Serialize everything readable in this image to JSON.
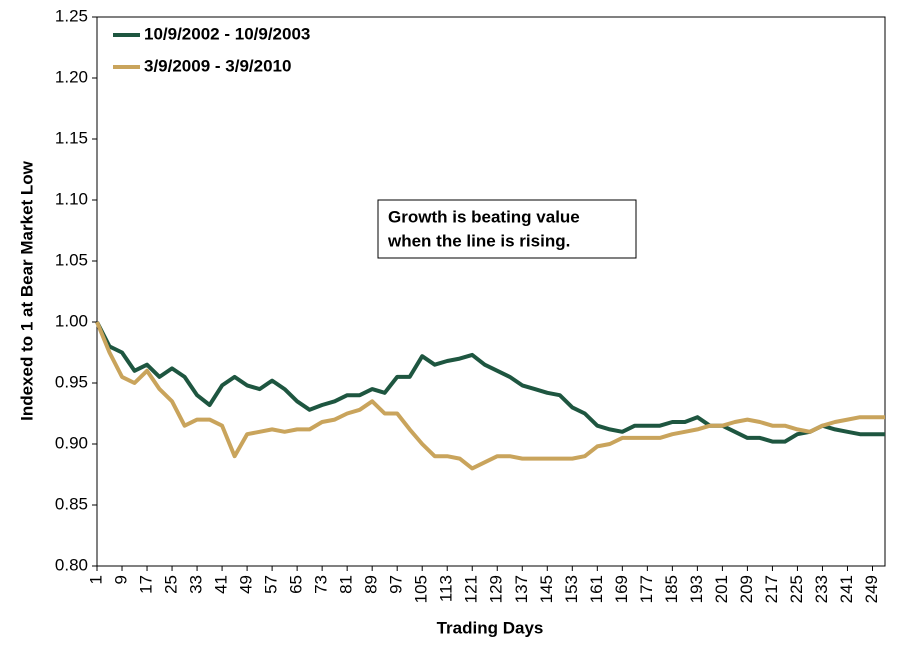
{
  "chart_data": {
    "type": "line",
    "ylabel": "Indexed to 1 at Bear Market Low",
    "xlabel": "Trading Days",
    "annotation": [
      "Growth is beating value",
      "when the line is rising."
    ],
    "legend": "upper left",
    "x": [
      1,
      5,
      9,
      13,
      17,
      21,
      25,
      29,
      33,
      37,
      41,
      45,
      49,
      53,
      57,
      61,
      65,
      69,
      73,
      77,
      81,
      85,
      89,
      93,
      97,
      101,
      105,
      109,
      113,
      117,
      121,
      125,
      129,
      133,
      137,
      141,
      145,
      149,
      153,
      157,
      161,
      165,
      169,
      173,
      177,
      181,
      185,
      189,
      193,
      197,
      201,
      205,
      209,
      213,
      217,
      221,
      225,
      229,
      233,
      237,
      241,
      245,
      249,
      253
    ],
    "series": [
      {
        "name": "10/9/2002 - 10/9/2003",
        "color": "#1e5640",
        "values": [
          1.0,
          0.98,
          0.975,
          0.96,
          0.965,
          0.955,
          0.962,
          0.955,
          0.94,
          0.932,
          0.948,
          0.955,
          0.948,
          0.945,
          0.952,
          0.945,
          0.935,
          0.928,
          0.932,
          0.935,
          0.94,
          0.94,
          0.945,
          0.942,
          0.955,
          0.955,
          0.972,
          0.965,
          0.968,
          0.97,
          0.973,
          0.965,
          0.96,
          0.955,
          0.948,
          0.945,
          0.942,
          0.94,
          0.93,
          0.925,
          0.915,
          0.912,
          0.91,
          0.915,
          0.915,
          0.915,
          0.918,
          0.918,
          0.922,
          0.915,
          0.915,
          0.91,
          0.905,
          0.905,
          0.902,
          0.902,
          0.908,
          0.91,
          0.915,
          0.912,
          0.91,
          0.908,
          0.908,
          0.908
        ]
      },
      {
        "name": "3/9/2009 - 3/9/2010",
        "color": "#c9a45c",
        "values": [
          1.0,
          0.975,
          0.955,
          0.95,
          0.96,
          0.945,
          0.935,
          0.915,
          0.92,
          0.92,
          0.915,
          0.89,
          0.908,
          0.91,
          0.912,
          0.91,
          0.912,
          0.912,
          0.918,
          0.92,
          0.925,
          0.928,
          0.935,
          0.925,
          0.925,
          0.912,
          0.9,
          0.89,
          0.89,
          0.888,
          0.88,
          0.885,
          0.89,
          0.89,
          0.888,
          0.888,
          0.888,
          0.888,
          0.888,
          0.89,
          0.898,
          0.9,
          0.905,
          0.905,
          0.905,
          0.905,
          0.908,
          0.91,
          0.912,
          0.915,
          0.915,
          0.918,
          0.92,
          0.918,
          0.915,
          0.915,
          0.912,
          0.91,
          0.915,
          0.918,
          0.92,
          0.922,
          0.922,
          0.922
        ]
      }
    ],
    "xlim": [
      1,
      253
    ],
    "xticks": [
      1,
      9,
      17,
      25,
      33,
      41,
      49,
      57,
      65,
      73,
      81,
      89,
      97,
      105,
      113,
      121,
      129,
      137,
      145,
      153,
      161,
      169,
      177,
      185,
      193,
      201,
      209,
      217,
      225,
      233,
      241,
      249
    ],
    "ylim": [
      0.8,
      1.25
    ],
    "yticks": [
      {
        "value": 0.8,
        "label": "0.80"
      },
      0.85,
      {
        "value": 0.9,
        "label": "0.90"
      },
      0.95,
      {
        "value": 1.0,
        "label": "1.00"
      },
      1.05,
      {
        "value": 1.1,
        "label": "1.10"
      },
      1.15,
      {
        "value": 1.2,
        "label": "1.20"
      },
      1.25
    ]
  }
}
